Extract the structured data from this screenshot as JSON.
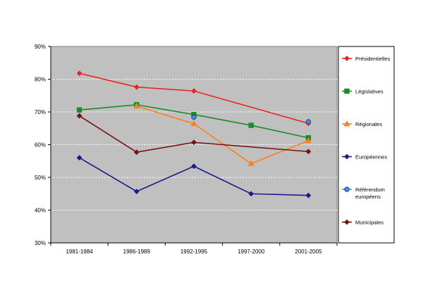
{
  "chart_data": {
    "type": "line",
    "categories": [
      "1981-1984",
      "1986-1989",
      "1992-1995",
      "1997-2000",
      "2001-2005"
    ],
    "ylim": [
      0.3,
      0.9
    ],
    "yticks": [
      "30%",
      "40%",
      "50%",
      "60%",
      "70%",
      "80%",
      "90%"
    ],
    "grid": "horizontal dashed",
    "plot_background": "#c0c0c0",
    "legend_position": "right",
    "series": [
      {
        "name": "Présidentielles",
        "color": "#e8241c",
        "marker": "diamond",
        "values": [
          0.818,
          0.776,
          0.764,
          null,
          0.665
        ]
      },
      {
        "name": "Législatives",
        "color": "#1a8a2a",
        "marker": "square",
        "values": [
          0.706,
          0.722,
          0.692,
          0.659,
          0.621
        ]
      },
      {
        "name": "Régionales",
        "color": "#ff7f16",
        "marker": "triangle",
        "values": [
          null,
          0.718,
          0.664,
          0.542,
          0.612
        ]
      },
      {
        "name": "Européennes",
        "color": "#1a1a8c",
        "marker": "diamond",
        "values": [
          0.56,
          0.457,
          0.534,
          0.45,
          0.445
        ]
      },
      {
        "name": "Référendum européens",
        "color": "#4a90e0",
        "marker": "circle",
        "values": [
          null,
          null,
          0.684,
          null,
          0.67
        ]
      },
      {
        "name": "Municipales",
        "color": "#7a1010",
        "marker": "diamond",
        "values": [
          0.688,
          0.577,
          0.607,
          null,
          0.579
        ]
      }
    ]
  }
}
